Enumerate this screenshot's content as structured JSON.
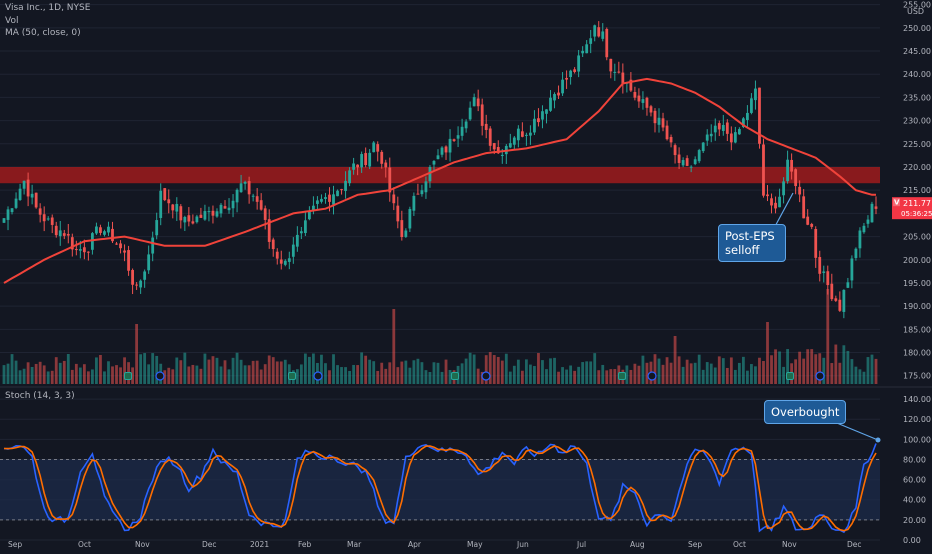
{
  "header": {
    "symbol_line": "Visa Inc., 1D, NYSE",
    "vol_label": "Vol",
    "ma_label": "MA (50, close, 0)",
    "stoch_label": "Stoch (14, 3, 3)",
    "currency": "USD"
  },
  "price_badge": {
    "icon": "V",
    "price": "211.77",
    "timer": "05:36:25"
  },
  "annotations": {
    "post_eps": [
      "Post-EPS",
      "selloff"
    ],
    "overbought": "Overbought"
  },
  "colors": {
    "background": "#131722",
    "up": "#26a69a",
    "down": "#ef5350",
    "ma": "#f0433a",
    "resistance_zone": "#b71c1c",
    "stoch_k": "#2962ff",
    "stoch_d": "#ff6d00",
    "callout": "#1e5a96"
  },
  "chart_data": [
    {
      "type": "candlestick",
      "title": "Visa Inc., 1D, NYSE",
      "y_axis_ticks": [
        175,
        180,
        185,
        190,
        195,
        200,
        205,
        210,
        215,
        220,
        225,
        230,
        235,
        240,
        245,
        250,
        255
      ],
      "y_axis_tick_labels": [
        "175.00",
        "180.00",
        "185.00",
        "190.00",
        "195.00",
        "200.00",
        "205.00",
        "210.00",
        "215.00",
        "220.00",
        "225.00",
        "230.00",
        "235.00",
        "240.00",
        "245.00",
        "250.00",
        "255.00"
      ],
      "ylim": [
        173,
        256
      ],
      "x_axis_labels": [
        "Sep",
        "Oct",
        "Nov",
        "Dec",
        "2021",
        "Feb",
        "Mar",
        "Apr",
        "May",
        "Jun",
        "Jul",
        "Aug",
        "Sep",
        "Oct",
        "Nov",
        "Dec"
      ],
      "close_path": [
        [
          0,
          209
        ],
        [
          3,
          214
        ],
        [
          5,
          217
        ],
        [
          8,
          211
        ],
        [
          12,
          207
        ],
        [
          15,
          206
        ],
        [
          18,
          202
        ],
        [
          21,
          203
        ],
        [
          24,
          207
        ],
        [
          27,
          205
        ],
        [
          30,
          201
        ],
        [
          33,
          193
        ],
        [
          36,
          201
        ],
        [
          39,
          214
        ],
        [
          42,
          212
        ],
        [
          45,
          208
        ],
        [
          48,
          209
        ],
        [
          51,
          210
        ],
        [
          54,
          212
        ],
        [
          57,
          213
        ],
        [
          59,
          216
        ],
        [
          62,
          214
        ],
        [
          64,
          211
        ],
        [
          66,
          204
        ],
        [
          68,
          201
        ],
        [
          70,
          199
        ],
        [
          72,
          204
        ],
        [
          74,
          205
        ],
        [
          76,
          209
        ],
        [
          78,
          212
        ],
        [
          81,
          214
        ],
        [
          84,
          216
        ],
        [
          87,
          220
        ],
        [
          90,
          222
        ],
        [
          92,
          225
        ],
        [
          94,
          222
        ],
        [
          97,
          211
        ],
        [
          99,
          205
        ],
        [
          101,
          210
        ],
        [
          103,
          215
        ],
        [
          105,
          218
        ],
        [
          108,
          222
        ],
        [
          111,
          225
        ],
        [
          114,
          230
        ],
        [
          117,
          234
        ],
        [
          119,
          230
        ],
        [
          121,
          226
        ],
        [
          123,
          223
        ],
        [
          125,
          225
        ],
        [
          127,
          227
        ],
        [
          130,
          228
        ],
        [
          133,
          231
        ],
        [
          136,
          235
        ],
        [
          139,
          238
        ],
        [
          142,
          241
        ],
        [
          145,
          246
        ],
        [
          147,
          251
        ],
        [
          149,
          248
        ],
        [
          151,
          242
        ],
        [
          153,
          241
        ],
        [
          155,
          238
        ],
        [
          158,
          234
        ],
        [
          161,
          232
        ],
        [
          164,
          228
        ],
        [
          167,
          222
        ],
        [
          170,
          219
        ],
        [
          173,
          223
        ],
        [
          176,
          227
        ],
        [
          179,
          228
        ],
        [
          182,
          226
        ],
        [
          185,
          232
        ],
        [
          187,
          236
        ],
        [
          189,
          214
        ],
        [
          191,
          211
        ],
        [
          193,
          214
        ],
        [
          195,
          220
        ],
        [
          197,
          217
        ],
        [
          199,
          210
        ],
        [
          201,
          207
        ],
        [
          202,
          201
        ],
        [
          204,
          196
        ],
        [
          206,
          193
        ],
        [
          208,
          190
        ],
        [
          210,
          196
        ],
        [
          212,
          203
        ],
        [
          214,
          207
        ],
        [
          216,
          211
        ],
        [
          217,
          212
        ]
      ],
      "ma_50_path": [
        [
          0,
          195
        ],
        [
          10,
          200
        ],
        [
          20,
          204
        ],
        [
          30,
          205
        ],
        [
          40,
          203
        ],
        [
          50,
          203
        ],
        [
          60,
          206
        ],
        [
          66,
          208
        ],
        [
          72,
          210
        ],
        [
          80,
          211
        ],
        [
          88,
          214
        ],
        [
          96,
          215
        ],
        [
          104,
          218
        ],
        [
          112,
          221
        ],
        [
          120,
          223
        ],
        [
          130,
          224
        ],
        [
          140,
          226
        ],
        [
          148,
          232
        ],
        [
          154,
          238
        ],
        [
          160,
          239
        ],
        [
          166,
          238
        ],
        [
          172,
          236
        ],
        [
          178,
          233
        ],
        [
          184,
          229
        ],
        [
          190,
          226
        ],
        [
          196,
          224
        ],
        [
          202,
          222
        ],
        [
          208,
          218
        ],
        [
          212,
          215
        ],
        [
          216,
          214
        ]
      ],
      "resistance_zone": {
        "low": 216.5,
        "high": 220.0
      },
      "last_price": 211.77,
      "annotations": [
        {
          "text": "Post-EPS selloff",
          "x_index": 193,
          "y": 224
        }
      ]
    },
    {
      "type": "bar",
      "title": "Vol",
      "values_relative_to_max": "most bars 0.1–0.3 of max; spikes around day 33 and day 97; largest cluster after day 185"
    },
    {
      "type": "line",
      "title": "Stoch (14, 3, 3)",
      "y_axis_ticks": [
        0,
        20,
        40,
        60,
        80,
        100,
        120,
        140
      ],
      "y_axis_tick_labels": [
        "0.00",
        "20.00",
        "40.00",
        "60.00",
        "80.00",
        "100.00",
        "120.00",
        "140.00"
      ],
      "ylim": [
        0,
        150
      ],
      "band": [
        20,
        80
      ],
      "k_points": [
        [
          0,
          92
        ],
        [
          4,
          95
        ],
        [
          7,
          82
        ],
        [
          10,
          30
        ],
        [
          13,
          18
        ],
        [
          16,
          22
        ],
        [
          19,
          70
        ],
        [
          22,
          88
        ],
        [
          25,
          40
        ],
        [
          28,
          20
        ],
        [
          31,
          10
        ],
        [
          34,
          25
        ],
        [
          37,
          62
        ],
        [
          40,
          82
        ],
        [
          43,
          75
        ],
        [
          46,
          52
        ],
        [
          49,
          64
        ],
        [
          52,
          90
        ],
        [
          55,
          74
        ],
        [
          58,
          66
        ],
        [
          61,
          26
        ],
        [
          64,
          18
        ],
        [
          67,
          14
        ],
        [
          70,
          18
        ],
        [
          73,
          80
        ],
        [
          76,
          88
        ],
        [
          79,
          82
        ],
        [
          82,
          86
        ],
        [
          85,
          72
        ],
        [
          88,
          76
        ],
        [
          91,
          60
        ],
        [
          94,
          22
        ],
        [
          97,
          18
        ],
        [
          100,
          80
        ],
        [
          103,
          95
        ],
        [
          106,
          94
        ],
        [
          109,
          88
        ],
        [
          112,
          90
        ],
        [
          115,
          86
        ],
        [
          118,
          64
        ],
        [
          121,
          74
        ],
        [
          124,
          88
        ],
        [
          127,
          76
        ],
        [
          130,
          90
        ],
        [
          133,
          84
        ],
        [
          136,
          96
        ],
        [
          139,
          88
        ],
        [
          142,
          94
        ],
        [
          145,
          74
        ],
        [
          148,
          24
        ],
        [
          151,
          18
        ],
        [
          154,
          52
        ],
        [
          157,
          48
        ],
        [
          160,
          16
        ],
        [
          163,
          28
        ],
        [
          166,
          20
        ],
        [
          169,
          62
        ],
        [
          172,
          90
        ],
        [
          175,
          84
        ],
        [
          178,
          58
        ],
        [
          181,
          90
        ],
        [
          184,
          92
        ],
        [
          186,
          88
        ],
        [
          188,
          12
        ],
        [
          191,
          10
        ],
        [
          194,
          32
        ],
        [
          197,
          12
        ],
        [
          200,
          10
        ],
        [
          203,
          28
        ],
        [
          206,
          14
        ],
        [
          209,
          10
        ],
        [
          212,
          30
        ],
        [
          214,
          75
        ],
        [
          217,
          95
        ]
      ],
      "annotations": [
        {
          "text": "Overbought",
          "x_index": 217,
          "y": 95
        }
      ]
    }
  ]
}
